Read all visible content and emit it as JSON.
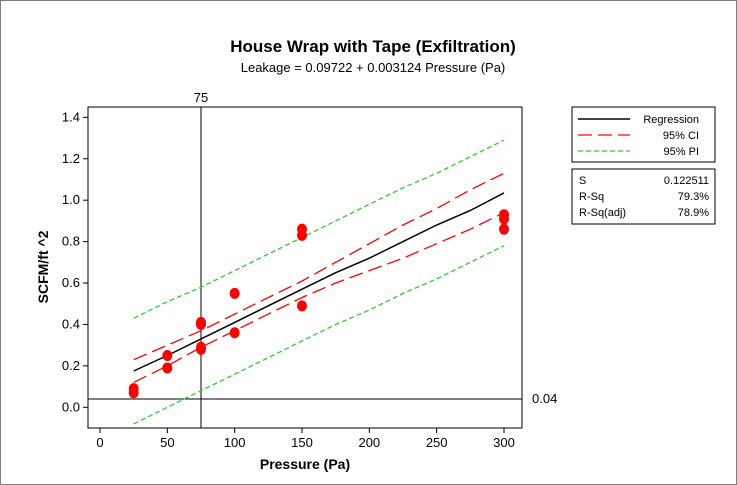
{
  "chart_data": {
    "type": "scatter",
    "title": "House Wrap with Tape (Exfiltration)",
    "subtitle": "Leakage =  0.09722 + 0.003124 Pressure (Pa)",
    "xlabel": "Pressure (Pa)",
    "ylabel": "SCFM/ft ^2",
    "xlim": [
      0,
      300
    ],
    "ylim": [
      -0.1,
      1.45
    ],
    "xticks": [
      0,
      50,
      100,
      150,
      200,
      250,
      300
    ],
    "yticks": [
      0.0,
      0.2,
      0.4,
      0.6,
      0.8,
      1.0,
      1.2,
      1.4
    ],
    "x_tick_labels": [
      "0",
      "50",
      "100",
      "150",
      "200",
      "250",
      "300"
    ],
    "y_tick_labels": [
      "0.0",
      "0.2",
      "0.4",
      "0.6",
      "0.8",
      "1.0",
      "1.2",
      "1.4"
    ],
    "grid": false,
    "legend_position": "right",
    "points": {
      "name": "Observations",
      "color": "#ff0000",
      "data": [
        {
          "x": 25,
          "y": 0.07
        },
        {
          "x": 25,
          "y": 0.09
        },
        {
          "x": 50,
          "y": 0.19
        },
        {
          "x": 50,
          "y": 0.25
        },
        {
          "x": 75,
          "y": 0.28
        },
        {
          "x": 75,
          "y": 0.29
        },
        {
          "x": 75,
          "y": 0.4
        },
        {
          "x": 75,
          "y": 0.41
        },
        {
          "x": 100,
          "y": 0.36
        },
        {
          "x": 100,
          "y": 0.55
        },
        {
          "x": 150,
          "y": 0.49
        },
        {
          "x": 150,
          "y": 0.83
        },
        {
          "x": 150,
          "y": 0.86
        },
        {
          "x": 300,
          "y": 0.86
        },
        {
          "x": 300,
          "y": 0.91
        },
        {
          "x": 300,
          "y": 0.93
        }
      ]
    },
    "series": [
      {
        "name": "Regression",
        "style": "solid",
        "color": "#000000",
        "x": [
          25,
          50,
          75,
          100,
          125,
          150,
          175,
          200,
          225,
          250,
          275,
          300
        ],
        "values": [
          0.175,
          0.25,
          0.33,
          0.41,
          0.49,
          0.57,
          0.65,
          0.72,
          0.8,
          0.88,
          0.95,
          1.035
        ]
      },
      {
        "name": "95% CI (upper)",
        "style": "long-dash",
        "color": "#ff0000",
        "x": [
          25,
          50,
          75,
          100,
          125,
          150,
          175,
          200,
          225,
          250,
          275,
          300
        ],
        "values": [
          0.23,
          0.3,
          0.37,
          0.45,
          0.53,
          0.61,
          0.7,
          0.79,
          0.88,
          0.96,
          1.05,
          1.13
        ]
      },
      {
        "name": "95% CI (lower)",
        "style": "long-dash",
        "color": "#ff0000",
        "x": [
          25,
          50,
          75,
          100,
          125,
          150,
          175,
          200,
          225,
          250,
          275,
          300
        ],
        "values": [
          0.12,
          0.2,
          0.29,
          0.37,
          0.45,
          0.53,
          0.6,
          0.66,
          0.72,
          0.79,
          0.86,
          0.94
        ]
      },
      {
        "name": "95% PI (upper)",
        "style": "short-dash",
        "color": "#33cc33",
        "x": [
          25,
          50,
          75,
          100,
          125,
          150,
          175,
          200,
          225,
          250,
          275,
          300
        ],
        "values": [
          0.43,
          0.51,
          0.58,
          0.66,
          0.74,
          0.82,
          0.9,
          0.98,
          1.06,
          1.13,
          1.21,
          1.29
        ]
      },
      {
        "name": "95% PI (lower)",
        "style": "short-dash",
        "color": "#33cc33",
        "x": [
          25,
          50,
          75,
          100,
          125,
          150,
          175,
          200,
          225,
          250,
          275,
          300
        ],
        "values": [
          -0.08,
          0.0,
          0.08,
          0.16,
          0.24,
          0.32,
          0.4,
          0.47,
          0.55,
          0.62,
          0.7,
          0.78
        ]
      }
    ],
    "reference_lines": {
      "vertical": {
        "x": 75,
        "label": "75"
      },
      "horizontal": {
        "y": 0.04,
        "label": "0.04"
      }
    },
    "legend": {
      "entries": [
        {
          "label": "Regression",
          "style": "solid",
          "color": "#000000"
        },
        {
          "label": "95% CI",
          "style": "long-dash",
          "color": "#ff0000"
        },
        {
          "label": "95% PI",
          "style": "short-dash",
          "color": "#33cc33"
        }
      ]
    },
    "stats": [
      {
        "label": "S",
        "value": "0.122511"
      },
      {
        "label": "R-Sq",
        "value": "79.3%"
      },
      {
        "label": "R-Sq(adj)",
        "value": "78.9%"
      }
    ]
  }
}
